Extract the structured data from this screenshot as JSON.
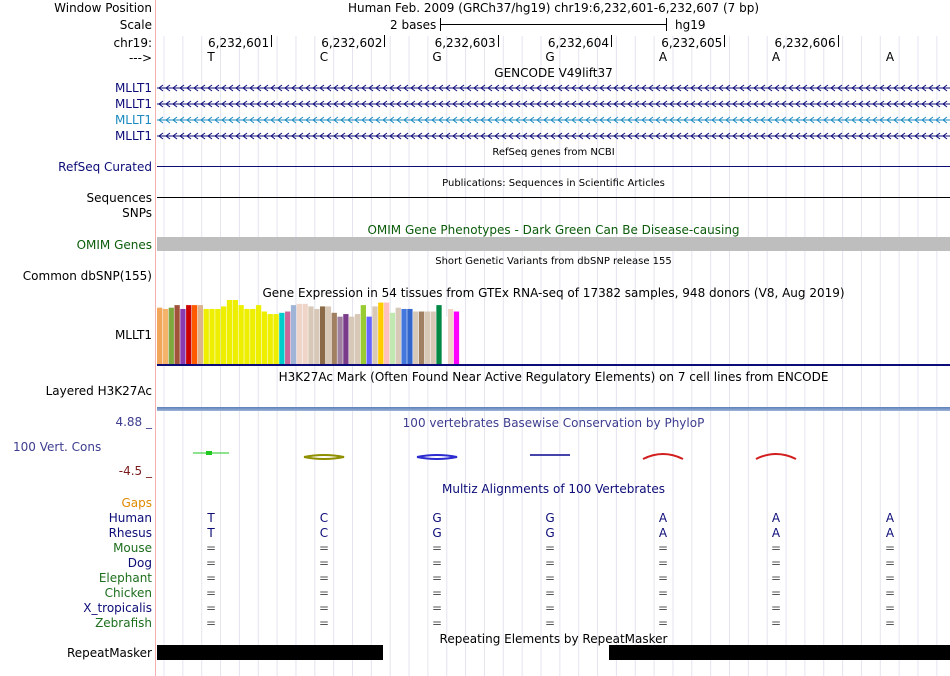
{
  "browser": {
    "window_position_label": "Window Position",
    "window_position_text": "Human Feb. 2009 (GRCh37/hg19)   chr19:6,232,601-6,232,607 (7 bp)",
    "scale_label": "Scale",
    "scale_text": "2 bases",
    "scale_assembly": "hg19",
    "chrom_label": "chr19:",
    "strand_label": "--->",
    "positions": [
      "6,232,601",
      "6,232,602",
      "6,232,603",
      "6,232,604",
      "6,232,605",
      "6,232,606"
    ],
    "bases": [
      "T",
      "C",
      "G",
      "G",
      "A",
      "A",
      "A"
    ]
  },
  "gencode": {
    "title": "GENCODE V49lift37",
    "rows": [
      {
        "label": "MLLT1",
        "color": "#0c0c78"
      },
      {
        "label": "MLLT1",
        "color": "#0c0c78"
      },
      {
        "label": "MLLT1",
        "color": "#1a8ac0"
      },
      {
        "label": "MLLT1",
        "color": "#0c0c78"
      }
    ]
  },
  "refseq": {
    "title": "RefSeq genes from NCBI",
    "label": "RefSeq Curated"
  },
  "publications": {
    "title": "Publications: Sequences in Scientific Articles",
    "label": "Sequences"
  },
  "snps_label": "SNPs",
  "omim": {
    "title": "OMIM Gene Phenotypes - Dark Green Can Be Disease-causing",
    "label": "OMIM Genes",
    "color": "#0b5c0b"
  },
  "dbsnp": {
    "title": "Short Genetic Variants from dbSNP release 155",
    "label": "Common dbSNP(155)"
  },
  "gtex": {
    "title": "Gene Expression in 54 tissues from GTEx RNA-seq of 17382 samples, 948 donors (V8, Aug 2019)",
    "label": "MLLT1",
    "bars": [
      {
        "v": 0.88,
        "c": "#f2a65a"
      },
      {
        "v": 0.86,
        "c": "#f5b26a"
      },
      {
        "v": 0.88,
        "c": "#7fa83f"
      },
      {
        "v": 0.92,
        "c": "#a0523a"
      },
      {
        "v": 0.86,
        "c": "#8a3bb0"
      },
      {
        "v": 0.92,
        "c": "#cc0000"
      },
      {
        "v": 0.92,
        "c": "#ff5a00"
      },
      {
        "v": 0.92,
        "c": "#d9b48f"
      },
      {
        "v": 0.86,
        "c": "#eeee00"
      },
      {
        "v": 0.86,
        "c": "#eeee00"
      },
      {
        "v": 0.86,
        "c": "#eeee00"
      },
      {
        "v": 0.9,
        "c": "#eeee00"
      },
      {
        "v": 1.0,
        "c": "#eeee00"
      },
      {
        "v": 1.0,
        "c": "#eeee00"
      },
      {
        "v": 0.92,
        "c": "#eeee00"
      },
      {
        "v": 0.86,
        "c": "#eeee00"
      },
      {
        "v": 0.86,
        "c": "#eeee00"
      },
      {
        "v": 0.92,
        "c": "#eeee00"
      },
      {
        "v": 0.82,
        "c": "#eeee00"
      },
      {
        "v": 0.78,
        "c": "#eeee00"
      },
      {
        "v": 0.78,
        "c": "#eeee00"
      },
      {
        "v": 0.8,
        "c": "#00cccc"
      },
      {
        "v": 0.82,
        "c": "#cc6699"
      },
      {
        "v": 0.92,
        "c": "#a0b4d8"
      },
      {
        "v": 0.94,
        "c": "#eed5c8"
      },
      {
        "v": 0.94,
        "c": "#eed5c8"
      },
      {
        "v": 0.9,
        "c": "#d8c8b8"
      },
      {
        "v": 0.86,
        "c": "#d8c8b8"
      },
      {
        "v": 0.9,
        "c": "#8b6a48"
      },
      {
        "v": 0.9,
        "c": "#d8c8b8"
      },
      {
        "v": 0.8,
        "c": "#a08060"
      },
      {
        "v": 0.74,
        "c": "#a080a0"
      },
      {
        "v": 0.78,
        "c": "#7a3c8a"
      },
      {
        "v": 0.74,
        "c": "#d8c8b8"
      },
      {
        "v": 0.78,
        "c": "#d8c8b8"
      },
      {
        "v": 0.92,
        "c": "#99cc33"
      },
      {
        "v": 0.74,
        "c": "#6666ff"
      },
      {
        "v": 0.9,
        "c": "#d8c8b8"
      },
      {
        "v": 0.96,
        "c": "#ffcc00"
      },
      {
        "v": 0.96,
        "c": "#ffc0c0"
      },
      {
        "v": 0.8,
        "c": "#c0e8b0"
      },
      {
        "v": 0.88,
        "c": "#d8c8b8"
      },
      {
        "v": 0.86,
        "c": "#4477dd"
      },
      {
        "v": 0.86,
        "c": "#3366cc"
      },
      {
        "v": 0.82,
        "c": "#d8c8b8"
      },
      {
        "v": 0.82,
        "c": "#a08060"
      },
      {
        "v": 0.82,
        "c": "#d8c8b8"
      },
      {
        "v": 0.82,
        "c": "#d8c8b8"
      },
      {
        "v": 0.92,
        "c": "#008844"
      },
      {
        "v": 0.74,
        "c": "#ffffff"
      },
      {
        "v": 0.86,
        "c": "#eed5c8"
      },
      {
        "v": 0.82,
        "c": "#ff00ff"
      }
    ]
  },
  "h3k27ac": {
    "title": "H3K27Ac Mark (Often Found Near Active Regulatory Elements) on 7 cell lines from ENCODE",
    "label": "Layered H3K27Ac"
  },
  "phylop": {
    "title": "100 vertebrates Basewise Conservation by PhyloP",
    "label": "100 Vert. Cons",
    "max": "4.88 _",
    "min": "-4.5 _",
    "title_color": "#3d3d8f"
  },
  "multiz": {
    "title": "Multiz Alignments of 100 Vertebrates",
    "gaps_label": "Gaps",
    "species": [
      {
        "name": "Human",
        "color": "#0c0c78",
        "seq": [
          "T",
          "C",
          "G",
          "G",
          "A",
          "A",
          "A"
        ]
      },
      {
        "name": "Rhesus",
        "color": "#0c0c78",
        "seq": [
          "T",
          "C",
          "G",
          "G",
          "A",
          "A",
          "A"
        ]
      },
      {
        "name": "Mouse",
        "color": "#1c6e1c",
        "seq": [
          "=",
          "=",
          "=",
          "=",
          "=",
          "=",
          "="
        ]
      },
      {
        "name": "Dog",
        "color": "#0c0c78",
        "seq": [
          "=",
          "=",
          "=",
          "=",
          "=",
          "=",
          "="
        ]
      },
      {
        "name": "Elephant",
        "color": "#1c6e1c",
        "seq": [
          "=",
          "=",
          "=",
          "=",
          "=",
          "=",
          "="
        ]
      },
      {
        "name": "Chicken",
        "color": "#1c6e1c",
        "seq": [
          "=",
          "=",
          "=",
          "=",
          "=",
          "=",
          "="
        ]
      },
      {
        "name": "X_tropicalis",
        "color": "#0c0c78",
        "seq": [
          "=",
          "=",
          "=",
          "=",
          "=",
          "=",
          "="
        ]
      },
      {
        "name": "Zebrafish",
        "color": "#1c6e1c",
        "seq": [
          "=",
          "=",
          "=",
          "=",
          "=",
          "=",
          "="
        ]
      }
    ]
  },
  "repeatmasker": {
    "title": "Repeating Elements by RepeatMasker",
    "label": "RepeatMasker"
  },
  "colors": {
    "link_label": "#0c0c78",
    "gaps": "#e08a00",
    "min_val": "#7a1a1a"
  }
}
